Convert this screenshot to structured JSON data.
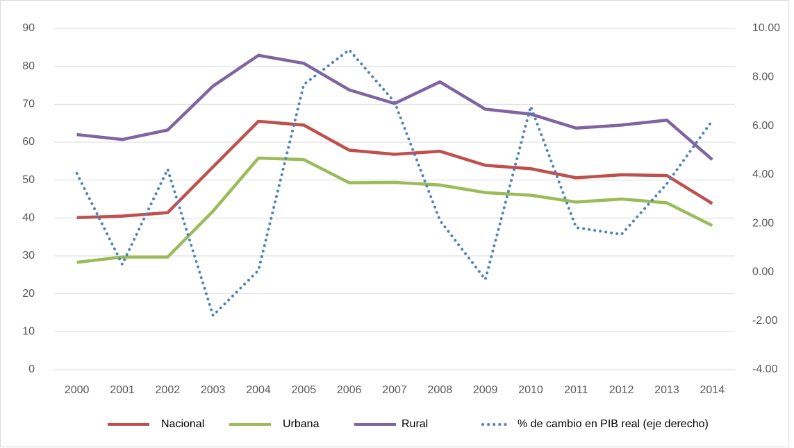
{
  "chart_data": {
    "type": "line",
    "categories": [
      "2000",
      "2001",
      "2002",
      "2003",
      "2004",
      "2005",
      "2006",
      "2007",
      "2008",
      "2009",
      "2010",
      "2011",
      "2012",
      "2013",
      "2014"
    ],
    "series": [
      {
        "name": "Nacional",
        "color": "#c0504d",
        "values": [
          40.1,
          40.5,
          41.4,
          53.5,
          65.5,
          64.5,
          57.9,
          56.8,
          57.6,
          53.9,
          53.0,
          50.6,
          51.4,
          51.2,
          43.8
        ]
      },
      {
        "name": "Urbana",
        "color": "#9bbb59",
        "values": [
          28.3,
          29.7,
          29.7,
          41.8,
          55.8,
          55.4,
          49.3,
          49.4,
          48.7,
          46.7,
          46.0,
          44.2,
          45.0,
          44.0,
          38.0
        ]
      },
      {
        "name": "Rural",
        "color": "#8064a2",
        "values": [
          62.0,
          60.7,
          63.2,
          74.8,
          82.9,
          80.8,
          73.8,
          70.2,
          75.9,
          68.7,
          67.4,
          63.7,
          64.5,
          65.8,
          55.4
        ]
      },
      {
        "name": "% de cambio en PIB real (eje derecho)",
        "color": "#4f81bd",
        "dashed": true,
        "axis": "y2",
        "values": [
          4.05,
          0.32,
          4.22,
          -1.78,
          0.07,
          7.7,
          9.12,
          6.98,
          2.12,
          -0.3,
          6.8,
          1.83,
          1.55,
          3.63,
          6.22
        ]
      }
    ],
    "ylim": [
      0,
      90
    ],
    "yticks": [
      0,
      10,
      20,
      30,
      40,
      50,
      60,
      70,
      80,
      90
    ],
    "y2lim": [
      -4,
      10
    ],
    "y2ticks": [
      {
        "value": -4,
        "label": "-4.00"
      },
      {
        "value": -2,
        "label": "-2.00"
      },
      {
        "value": 0,
        "label": "0.00"
      },
      {
        "value": 2,
        "label": "2.00"
      },
      {
        "value": 4,
        "label": "4.00"
      },
      {
        "value": 6,
        "label": "6.00"
      },
      {
        "value": 8,
        "label": "8.00"
      },
      {
        "value": 10,
        "label": "10.00"
      }
    ],
    "grid": true,
    "legend": "bottom"
  }
}
